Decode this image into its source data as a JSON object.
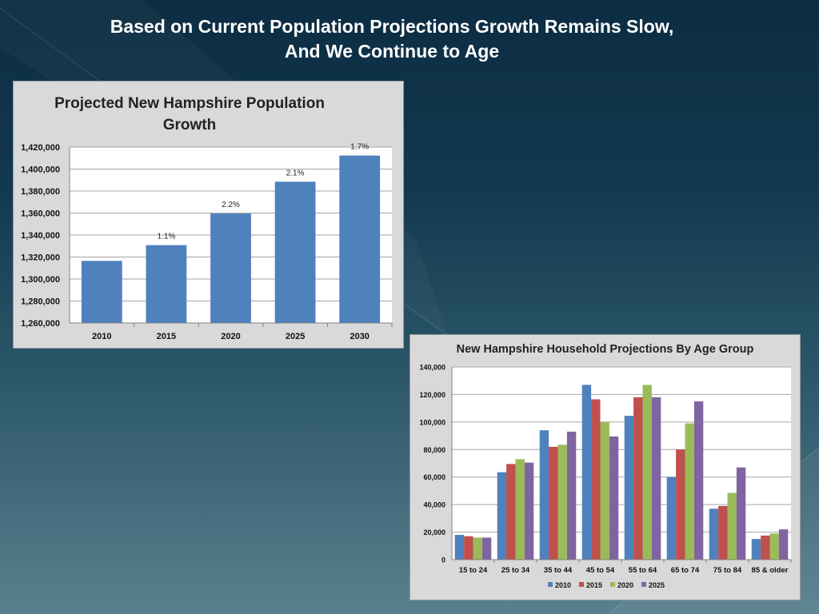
{
  "slide": {
    "title_line1": "Based on Current Population Projections Growth Remains Slow,",
    "title_line2": "And We Continue to Age"
  },
  "colors": {
    "bar_blue": "#4f81bd",
    "s2010": "#4f81bd",
    "s2015": "#c0504d",
    "s2020": "#9bbb59",
    "s2025": "#8064a2"
  },
  "chart_data": [
    {
      "type": "bar",
      "title": "Projected New Hampshire Population Growth",
      "title_line1": "Projected New Hampshire Population",
      "title_line2": "Growth",
      "categories": [
        "2010",
        "2015",
        "2020",
        "2025",
        "2030"
      ],
      "values": [
        1316500,
        1330800,
        1359600,
        1388500,
        1412300
      ],
      "data_labels": [
        "",
        "1.1%",
        "2.2%",
        "2.1%",
        "1.7%"
      ],
      "ylim": [
        1260000,
        1420000
      ],
      "yticks": [
        1260000,
        1280000,
        1300000,
        1320000,
        1340000,
        1360000,
        1380000,
        1400000,
        1420000
      ],
      "ytick_labels": [
        "1,260,000",
        "1,280,000",
        "1,300,000",
        "1,320,000",
        "1,340,000",
        "1,360,000",
        "1,380,000",
        "1,400,000",
        "1,420,000"
      ],
      "grid": true,
      "legend": "none"
    },
    {
      "type": "bar",
      "title": "New Hampshire Household Projections By Age Group",
      "categories": [
        "15 to 24",
        "25 to 34",
        "35 to 44",
        "45 to 54",
        "55 to 64",
        "65 to 74",
        "75 to 84",
        "85 & older"
      ],
      "series": [
        {
          "name": "2010",
          "values": [
            18000,
            63500,
            94000,
            127000,
            104500,
            60000,
            37000,
            15000
          ]
        },
        {
          "name": "2015",
          "values": [
            17000,
            69500,
            82000,
            116500,
            118000,
            80000,
            39000,
            17500
          ]
        },
        {
          "name": "2020",
          "values": [
            16000,
            73000,
            83500,
            100000,
            127000,
            99000,
            48500,
            19000
          ]
        },
        {
          "name": "2025",
          "values": [
            16000,
            70500,
            93000,
            89500,
            118000,
            115000,
            67000,
            22000
          ]
        }
      ],
      "ylim": [
        0,
        140000
      ],
      "yticks": [
        0,
        20000,
        40000,
        60000,
        80000,
        100000,
        120000,
        140000
      ],
      "ytick_labels": [
        "0",
        "20,000",
        "40,000",
        "60,000",
        "80,000",
        "100,000",
        "120,000",
        "140,000"
      ],
      "grid": true,
      "legend": "bottom"
    }
  ]
}
